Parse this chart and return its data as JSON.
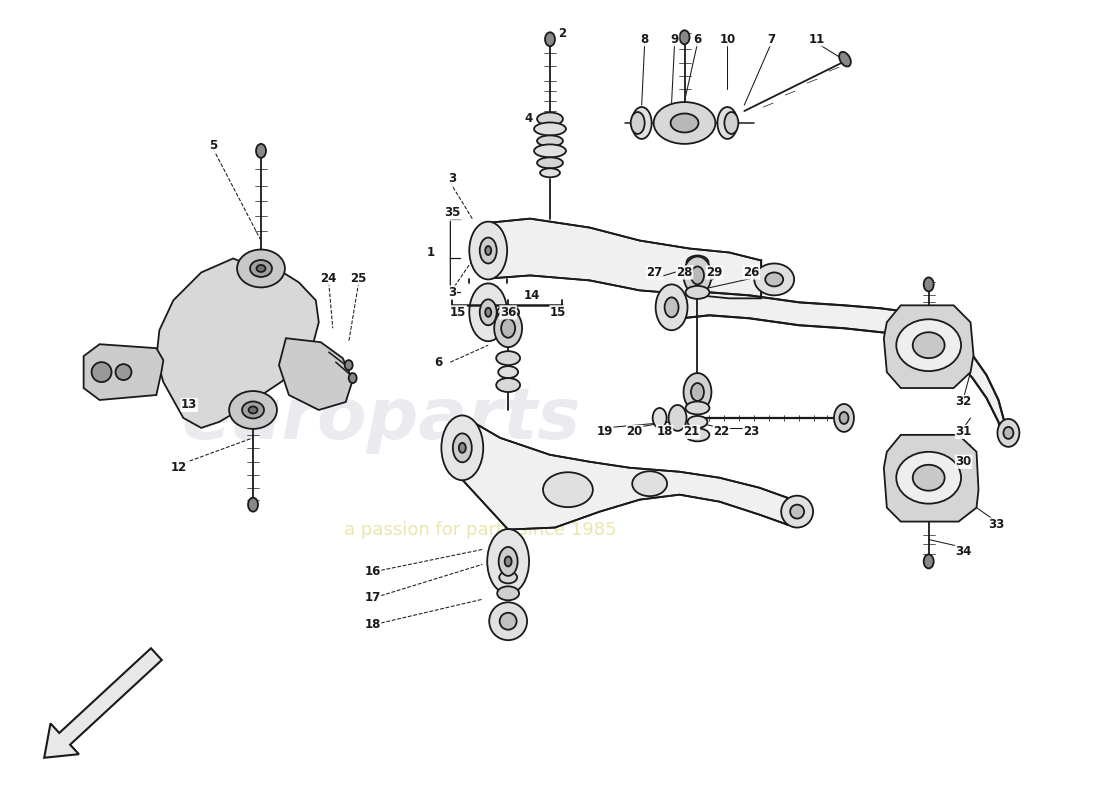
{
  "bg_color": "#ffffff",
  "lc": "#1a1a1a",
  "lw": 1.3,
  "wm1": "#c8c8d5",
  "wm2": "#d8d060",
  "fig_w": 11.0,
  "fig_h": 8.0,
  "dpi": 100,
  "xlim": [
    0,
    11
  ],
  "ylim": [
    0,
    8
  ]
}
